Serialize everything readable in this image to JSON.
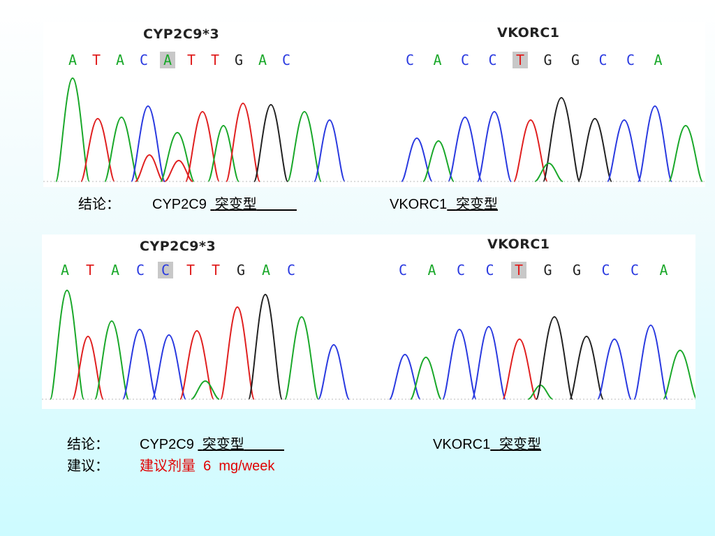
{
  "panels": [
    {
      "gene1": {
        "title": "CYP2C9*3",
        "sequence": [
          "A",
          "T",
          "A",
          "C",
          "A",
          "T",
          "T",
          "G",
          "A",
          "C"
        ],
        "highlight_index": 4
      },
      "gene2": {
        "title": "VKORC1",
        "sequence": [
          "C",
          "A",
          "C",
          "C",
          "T",
          "G",
          "G",
          "C",
          "C",
          "A"
        ],
        "highlight_index": 4
      }
    },
    {
      "gene1": {
        "title": "CYP2C9*3",
        "sequence": [
          "A",
          "T",
          "A",
          "C",
          "C",
          "T",
          "T",
          "G",
          "A",
          "C"
        ],
        "highlight_index": 4
      },
      "gene2": {
        "title": "VKORC1",
        "sequence": [
          "C",
          "A",
          "C",
          "C",
          "T",
          "G",
          "G",
          "C",
          "C",
          "A"
        ],
        "highlight_index": 4
      }
    }
  ],
  "result1": {
    "label": "结论：",
    "gene1": "CYP2C9",
    "gene1_type": "突变型",
    "gene2": "VKORC1",
    "gene2_type": "突变型"
  },
  "result2": {
    "label": "结论：",
    "gene1": "CYP2C9",
    "gene1_type": "突变型",
    "gene2": "VKORC1",
    "gene2_type": "突变型",
    "advice_label": "建议：",
    "advice_text": "建议剂量",
    "dose_value": "6",
    "dose_unit": "mg/week"
  },
  "colors": {
    "A": "#1aa82a",
    "T": "#e02020",
    "C": "#2a3ae0",
    "G": "#222222",
    "advice": "#e00000"
  }
}
